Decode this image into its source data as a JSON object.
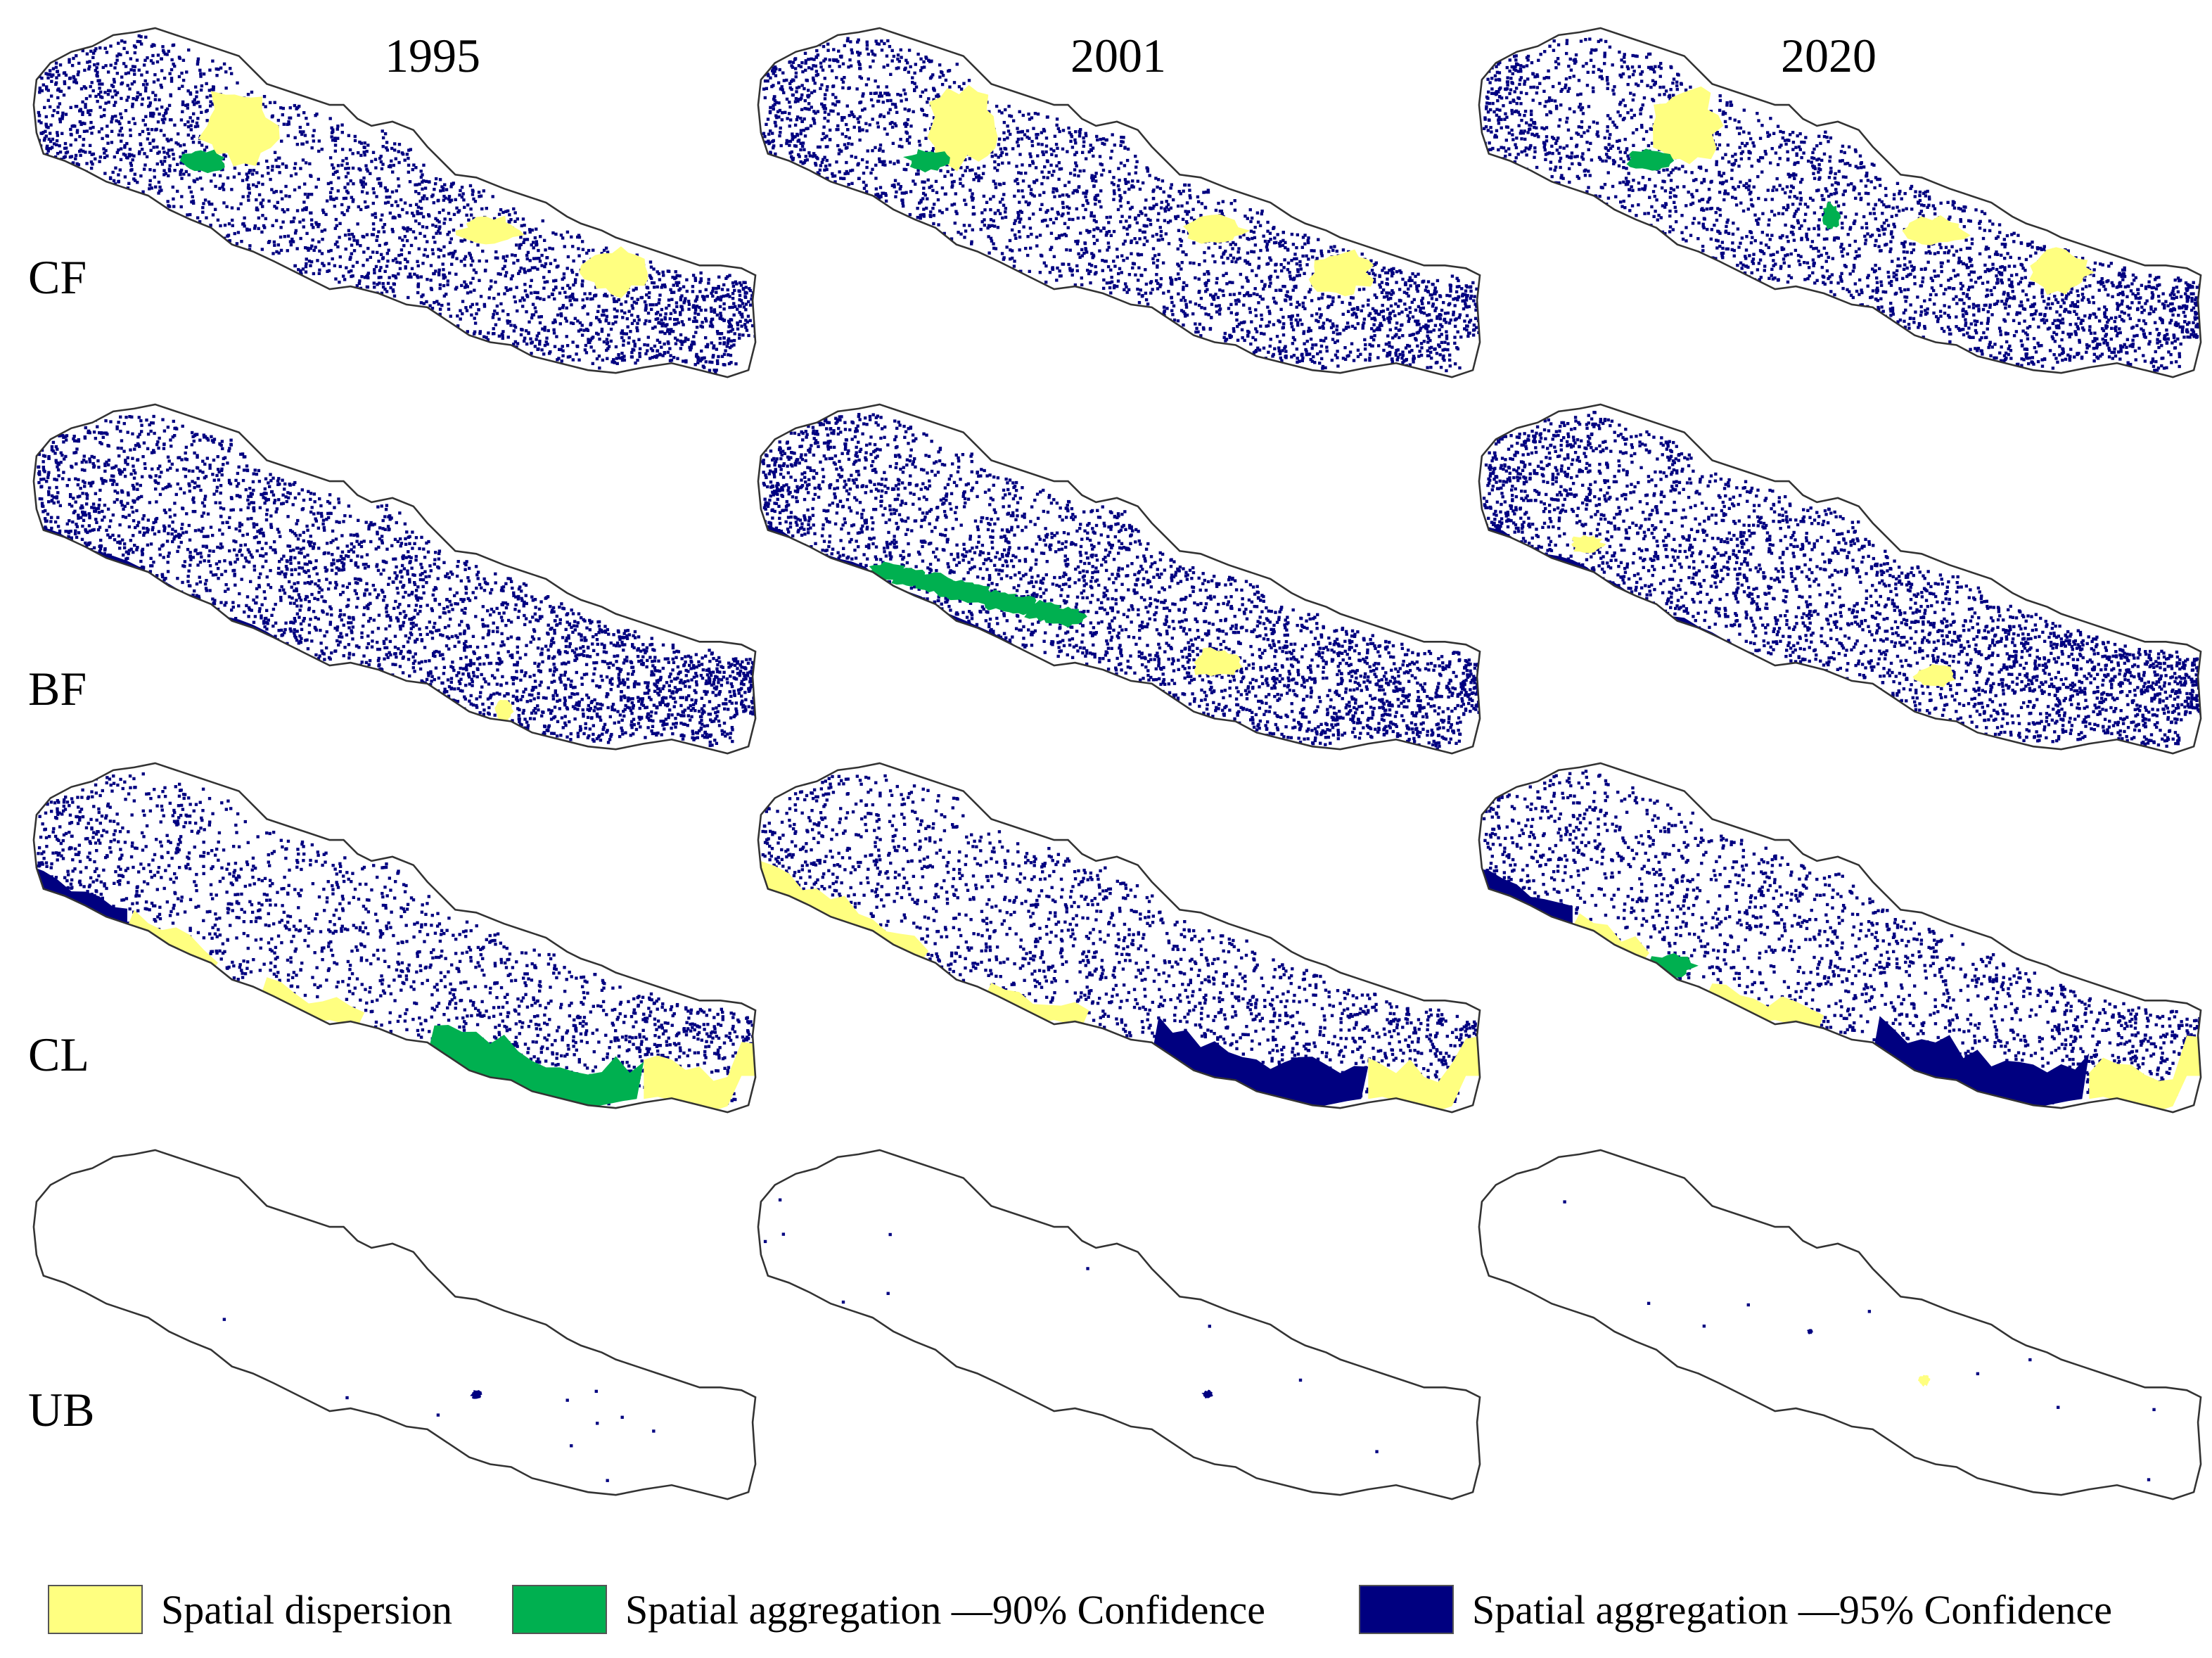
{
  "columns": [
    {
      "year": "1995"
    },
    {
      "year": "2001"
    },
    {
      "year": "2020"
    }
  ],
  "rows": [
    {
      "label": "CF"
    },
    {
      "label": "BF"
    },
    {
      "label": "CL"
    },
    {
      "label": "UB"
    }
  ],
  "legend": [
    {
      "label": "Spatial dispersion",
      "color": "#ffff80"
    },
    {
      "label": "Spatial aggregation —90% Confidence",
      "color": "#00b050"
    },
    {
      "label": "Spatial aggregation —95% Confidence",
      "color": "#000080"
    }
  ],
  "colors": {
    "outline": "#333333",
    "dispersion": "#ffff80",
    "agg90": "#00b050",
    "agg95": "#000080"
  }
}
